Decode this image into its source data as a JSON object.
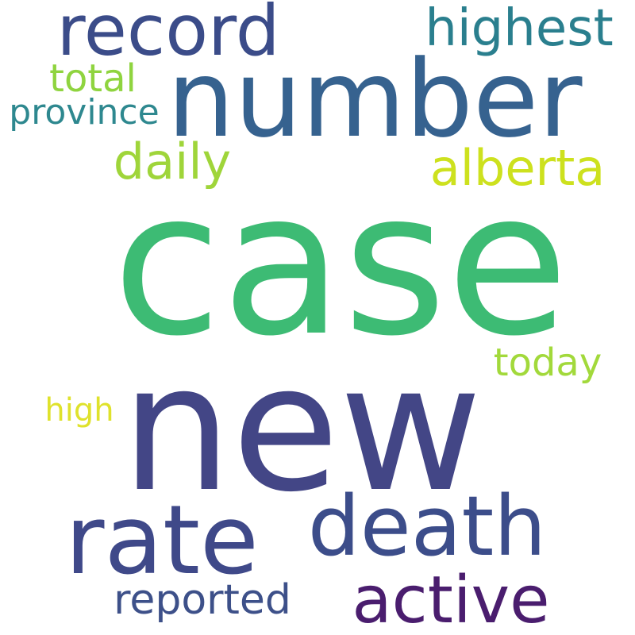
{
  "words": {
    "case": "case",
    "new": "new",
    "number": "number",
    "rate": "rate",
    "death": "death",
    "record": "record",
    "active": "active",
    "highest": "highest",
    "alberta": "alberta",
    "daily": "daily",
    "reported": "reported",
    "today": "today",
    "total": "total",
    "province": "province",
    "high": "high"
  },
  "colors": {
    "background": "#ffffff",
    "case": "#3dbb74",
    "new": "#434686",
    "number": "#36628f",
    "rate": "#3f4989",
    "death": "#3c4d8a",
    "record": "#3b4c89",
    "active": "#4a1d6e",
    "highest": "#2a7f8e",
    "alberta": "#cde11e",
    "daily": "#9fd53a",
    "reported": "#3d5089",
    "today": "#a2d93b",
    "total": "#8fd43f",
    "province": "#2e888f",
    "high": "#dfe22c"
  }
}
